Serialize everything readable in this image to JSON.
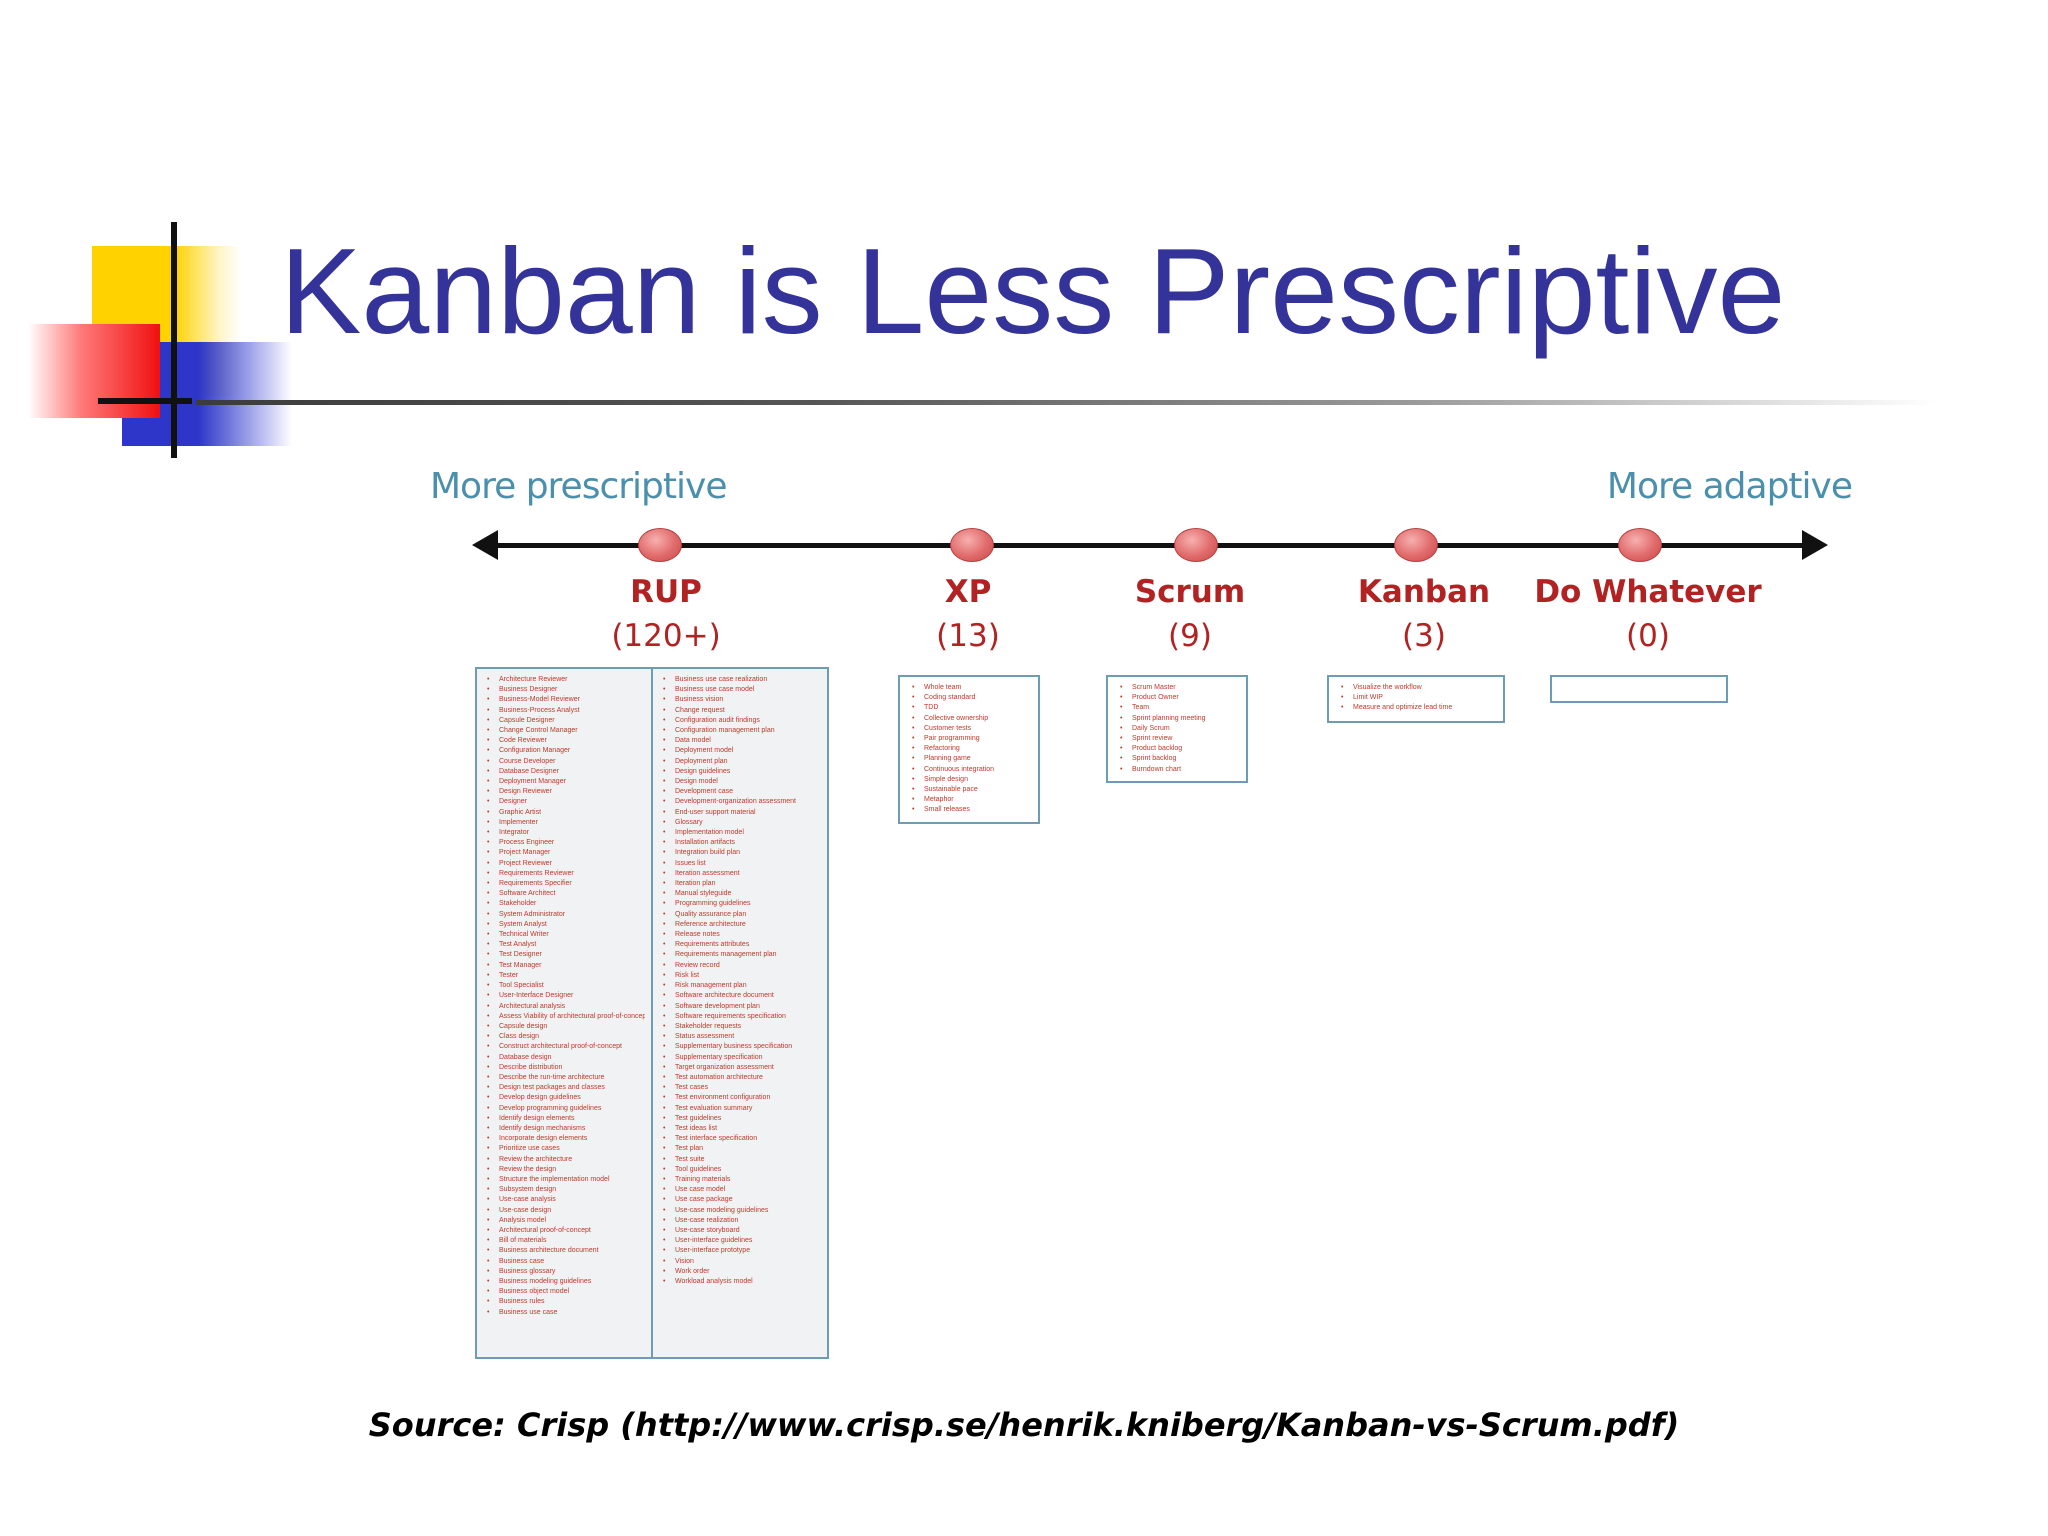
{
  "title": "Kanban is Less Prescriptive",
  "colors": {
    "title": "#333399",
    "spectrum_label": "#4a90ad",
    "method_label": "#b22222",
    "list_text": "#c0392b",
    "box_border": "#6d9cb4"
  },
  "spectrum": {
    "left_label": "More prescriptive",
    "right_label": "More adaptive"
  },
  "methods": [
    {
      "name": "RUP",
      "count": "(120+)",
      "position": 0.1
    },
    {
      "name": "XP",
      "count": "(13)",
      "position": 0.28
    },
    {
      "name": "Scrum",
      "count": "(9)",
      "position": 0.41
    },
    {
      "name": "Kanban",
      "count": "(3)",
      "position": 0.54
    },
    {
      "name": "Do Whatever",
      "count": "(0)",
      "position": 0.67
    }
  ],
  "prescriptions": {
    "rup_col_1": [
      "Architecture Reviewer",
      "Business Designer",
      "Business-Model Reviewer",
      "Business-Process Analyst",
      "Capsule Designer",
      "Change Control Manager",
      "Code Reviewer",
      "Configuration Manager",
      "Course Developer",
      "Database Designer",
      "Deployment Manager",
      "Design Reviewer",
      "Designer",
      "Graphic Artist",
      "Implementer",
      "Integrator",
      "Process Engineer",
      "Project Manager",
      "Project Reviewer",
      "Requirements Reviewer",
      "Requirements Specifier",
      "Software Architect",
      "Stakeholder",
      "System Administrator",
      "System Analyst",
      "Technical Writer",
      "Test Analyst",
      "Test Designer",
      "Test Manager",
      "Tester",
      "Tool Specialist",
      "User-Interface Designer",
      "Architectural analysis",
      "Assess Viability of architectural proof-of-concept",
      "Capsule design",
      "Class design",
      "Construct architectural proof-of-concept",
      "Database design",
      "Describe distribution",
      "Describe the run-time architecture",
      "Design test packages and classes",
      "Develop design guidelines",
      "Develop programming guidelines",
      "Identify design elements",
      "Identify design mechanisms",
      "Incorporate design elements",
      "Prioritize use cases",
      "Review the architecture",
      "Review the design",
      "Structure the implementation model",
      "Subsystem design",
      "Use-case analysis",
      "Use-case design",
      "Analysis model",
      "Architectural proof-of-concept",
      "Bill of materials",
      "Business architecture document",
      "Business case",
      "Business glossary",
      "Business modeling guidelines",
      "Business object model",
      "Business rules",
      "Business use case"
    ],
    "rup_col_2": [
      "Business use case realization",
      "Business use case model",
      "Business vision",
      "Change request",
      "Configuration audit findings",
      "Configuration management plan",
      "Data model",
      "Deployment model",
      "Deployment plan",
      "Design guidelines",
      "Design model",
      "Development case",
      "Development-organization assessment",
      "End-user support material",
      "Glossary",
      "Implementation model",
      "Installation artifacts",
      "Integration build plan",
      "Issues list",
      "Iteration assessment",
      "Iteration plan",
      "Manual styleguide",
      "Programming guidelines",
      "Quality assurance plan",
      "Reference architecture",
      "Release notes",
      "Requirements attributes",
      "Requirements management plan",
      "Review record",
      "Risk list",
      "Risk management plan",
      "Software architecture document",
      "Software development plan",
      "Software requirements specification",
      "Stakeholder requests",
      "Status assessment",
      "Supplementary business specification",
      "Supplementary specification",
      "Target organization assessment",
      "Test automation architecture",
      "Test cases",
      "Test environment configuration",
      "Test evaluation summary",
      "Test guidelines",
      "Test ideas list",
      "Test interface specification",
      "Test plan",
      "Test suite",
      "Tool guidelines",
      "Training materials",
      "Use case model",
      "Use case package",
      "Use-case modeling guidelines",
      "Use-case realization",
      "Use-case storyboard",
      "User-interface guidelines",
      "User-interface prototype",
      "Vision",
      "Work order",
      "Workload analysis model"
    ],
    "xp": [
      "Whole team",
      "Coding standard",
      "TDD",
      "Collective ownership",
      "Customer tests",
      "Pair programming",
      "Refactoring",
      "Planning game",
      "Continuous integration",
      "Simple design",
      "Sustainable pace",
      "Metaphor",
      "Small releases"
    ],
    "scrum": [
      "Scrum Master",
      "Product Owner",
      "Team",
      "Sprint planning meeting",
      "Daily Scrum",
      "Sprint review",
      "Product backlog",
      "Sprint backlog",
      "Burndown chart"
    ],
    "kanban": [
      "Visualize the workflow",
      "Limit WIP",
      "Measure and optimize lead time"
    ]
  },
  "source": "Source: Crisp (http://www.crisp.se/henrik.kniberg/Kanban-vs-Scrum.pdf)"
}
